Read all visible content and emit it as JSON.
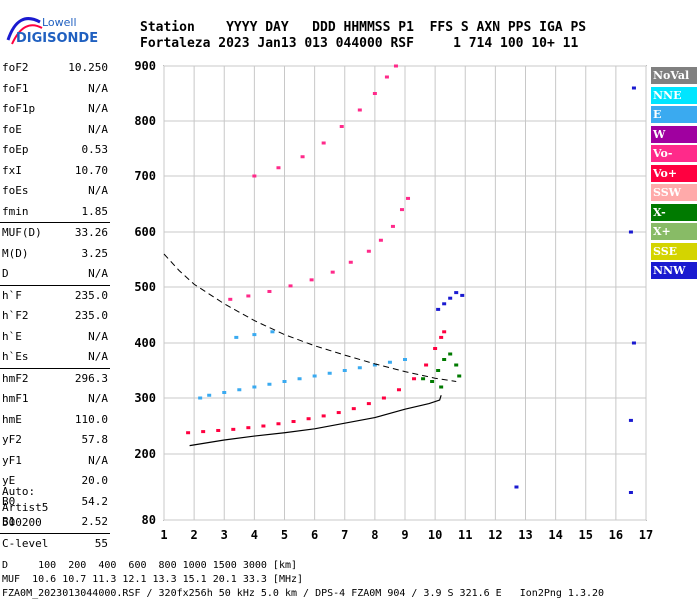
{
  "logo": {
    "line1": "Lowell",
    "line2": "DIGISONDE"
  },
  "header": {
    "labels_row": "Station    YYYY DAY   DDD HHMMSS P1  FFS S AXN PPS IGA PS",
    "values_row": "Fortaleza 2023 Jan13 013 044000 RSF     1 714 100 10+ 11"
  },
  "params": [
    {
      "label": "foF2",
      "value": "10.250"
    },
    {
      "label": "foF1",
      "value": "N/A"
    },
    {
      "label": "foF1p",
      "value": "N/A"
    },
    {
      "label": "foE",
      "value": "N/A"
    },
    {
      "label": "foEp",
      "value": "0.53"
    },
    {
      "label": "fxI",
      "value": "10.70"
    },
    {
      "label": "foEs",
      "value": "N/A"
    },
    {
      "label": "fmin",
      "value": "1.85"
    },
    {
      "label": "MUF(D)",
      "value": "33.26"
    },
    {
      "label": "M(D)",
      "value": "3.25"
    },
    {
      "label": "D",
      "value": "N/A"
    },
    {
      "label": "h`F",
      "value": "235.0"
    },
    {
      "label": "h`F2",
      "value": "235.0"
    },
    {
      "label": "h`E",
      "value": "N/A"
    },
    {
      "label": "h`Es",
      "value": "N/A"
    },
    {
      "label": "hmF2",
      "value": "296.3"
    },
    {
      "label": "hmF1",
      "value": "N/A"
    },
    {
      "label": "hmE",
      "value": "110.0"
    },
    {
      "label": "yF2",
      "value": "57.8"
    },
    {
      "label": "yF1",
      "value": "N/A"
    },
    {
      "label": "yE",
      "value": "20.0"
    },
    {
      "label": "B0",
      "value": "54.2"
    },
    {
      "label": "B1",
      "value": "2.52"
    },
    {
      "label": "C-level",
      "value": "55"
    }
  ],
  "auto": {
    "line1": "Auto:",
    "line2": "Artist5",
    "line3": "500200"
  },
  "footer": {
    "d_row": "D     100  200  400  600  800 1000 1500 3000 [km]",
    "muf_row": "MUF  10.6 10.7 11.3 12.1 13.3 15.1 20.1 33.3 [MHz]",
    "info_row": "FZA0M_2023013044000.RSF / 320fx256h 50 kHz 5.0 km / DPS-4 FZA0M 904 / 3.9 S 321.6 E   Ion2Png 1.3.20"
  },
  "legend": [
    {
      "label": "NoVal",
      "color": "#808080"
    },
    {
      "label": "NNE",
      "color": "#00e5ff"
    },
    {
      "label": "E",
      "color": "#3aaaf0"
    },
    {
      "label": "W",
      "color": "#a000a0"
    },
    {
      "label": "Vo-",
      "color": "#ff2a8a"
    },
    {
      "label": "Vo+",
      "color": "#ff0040"
    },
    {
      "label": "SSW",
      "color": "#ffaaaa"
    },
    {
      "label": "X-",
      "color": "#007a00"
    },
    {
      "label": "X+",
      "color": "#88bb66"
    },
    {
      "label": "SSE",
      "color": "#d4d400"
    },
    {
      "label": "NNW",
      "color": "#1a1ad0"
    }
  ],
  "chart_data": {
    "type": "scatter",
    "title": "",
    "xlabel": "",
    "ylabel": "",
    "xlim": [
      1,
      17
    ],
    "ylim": [
      80,
      900
    ],
    "x_ticks": [
      1,
      2,
      3,
      4,
      5,
      6,
      7,
      8,
      9,
      10,
      11,
      12,
      13,
      14,
      15,
      16,
      17
    ],
    "y_ticks": [
      80,
      200,
      300,
      400,
      500,
      600,
      700,
      800,
      900
    ],
    "grid": true,
    "series": [
      {
        "name": "Vo+",
        "color": "#ff0040",
        "points": [
          [
            1.8,
            238
          ],
          [
            2.3,
            240
          ],
          [
            2.8,
            242
          ],
          [
            3.3,
            244
          ],
          [
            3.8,
            247
          ],
          [
            4.3,
            250
          ],
          [
            4.8,
            254
          ],
          [
            5.3,
            258
          ],
          [
            5.8,
            263
          ],
          [
            6.3,
            268
          ],
          [
            6.8,
            274
          ],
          [
            7.3,
            281
          ],
          [
            7.8,
            290
          ],
          [
            8.3,
            300
          ],
          [
            8.8,
            315
          ],
          [
            9.3,
            335
          ],
          [
            9.7,
            360
          ],
          [
            10.0,
            390
          ],
          [
            10.2,
            410
          ],
          [
            10.3,
            420
          ]
        ]
      },
      {
        "name": "Vo-",
        "color": "#ff2a8a",
        "points": [
          [
            3.2,
            478
          ],
          [
            3.8,
            484
          ],
          [
            4.5,
            492
          ],
          [
            5.2,
            502
          ],
          [
            5.9,
            513
          ],
          [
            6.6,
            527
          ],
          [
            7.2,
            545
          ],
          [
            7.8,
            565
          ],
          [
            8.2,
            585
          ],
          [
            8.6,
            610
          ],
          [
            8.9,
            640
          ],
          [
            9.1,
            660
          ],
          [
            4.0,
            700
          ],
          [
            4.8,
            715
          ],
          [
            5.6,
            735
          ],
          [
            6.3,
            760
          ],
          [
            6.9,
            790
          ],
          [
            7.5,
            820
          ],
          [
            8.0,
            850
          ],
          [
            8.4,
            880
          ],
          [
            8.7,
            900
          ]
        ]
      },
      {
        "name": "X-",
        "color": "#007a00",
        "points": [
          [
            9.9,
            330
          ],
          [
            10.1,
            350
          ],
          [
            10.3,
            370
          ],
          [
            10.5,
            380
          ],
          [
            10.7,
            360
          ],
          [
            10.8,
            340
          ],
          [
            10.2,
            320
          ],
          [
            9.6,
            335
          ]
        ]
      },
      {
        "name": "E",
        "color": "#3aaaf0",
        "points": [
          [
            2.2,
            300
          ],
          [
            2.5,
            305
          ],
          [
            3.0,
            310
          ],
          [
            3.5,
            315
          ],
          [
            4.0,
            320
          ],
          [
            4.5,
            325
          ],
          [
            5.0,
            330
          ],
          [
            5.5,
            335
          ],
          [
            6.0,
            340
          ],
          [
            6.5,
            345
          ],
          [
            7.0,
            350
          ],
          [
            7.5,
            355
          ],
          [
            8.0,
            360
          ],
          [
            8.5,
            365
          ],
          [
            9.0,
            370
          ],
          [
            3.4,
            410
          ],
          [
            4.0,
            415
          ],
          [
            4.6,
            420
          ]
        ]
      },
      {
        "name": "NNW",
        "color": "#1a1ad0",
        "points": [
          [
            10.3,
            470
          ],
          [
            10.5,
            480
          ],
          [
            10.7,
            490
          ],
          [
            10.9,
            485
          ],
          [
            10.1,
            460
          ],
          [
            16.5,
            260
          ],
          [
            16.6,
            400
          ],
          [
            16.5,
            600
          ],
          [
            16.6,
            860
          ],
          [
            12.7,
            140
          ],
          [
            16.5,
            130
          ]
        ]
      }
    ],
    "profile_line": [
      [
        1.85,
        215
      ],
      [
        3,
        225
      ],
      [
        4,
        232
      ],
      [
        5,
        238
      ],
      [
        6,
        245
      ],
      [
        7,
        255
      ],
      [
        8,
        265
      ],
      [
        9,
        280
      ],
      [
        9.8,
        290
      ],
      [
        10.15,
        296.3
      ],
      [
        10.2,
        305
      ]
    ],
    "muf_curve": [
      [
        1.0,
        560
      ],
      [
        1.5,
        530
      ],
      [
        2,
        505
      ],
      [
        3,
        470
      ],
      [
        4,
        440
      ],
      [
        5,
        415
      ],
      [
        6,
        395
      ],
      [
        7,
        378
      ],
      [
        8,
        362
      ],
      [
        9,
        348
      ],
      [
        10,
        336
      ],
      [
        10.7,
        330
      ]
    ]
  }
}
